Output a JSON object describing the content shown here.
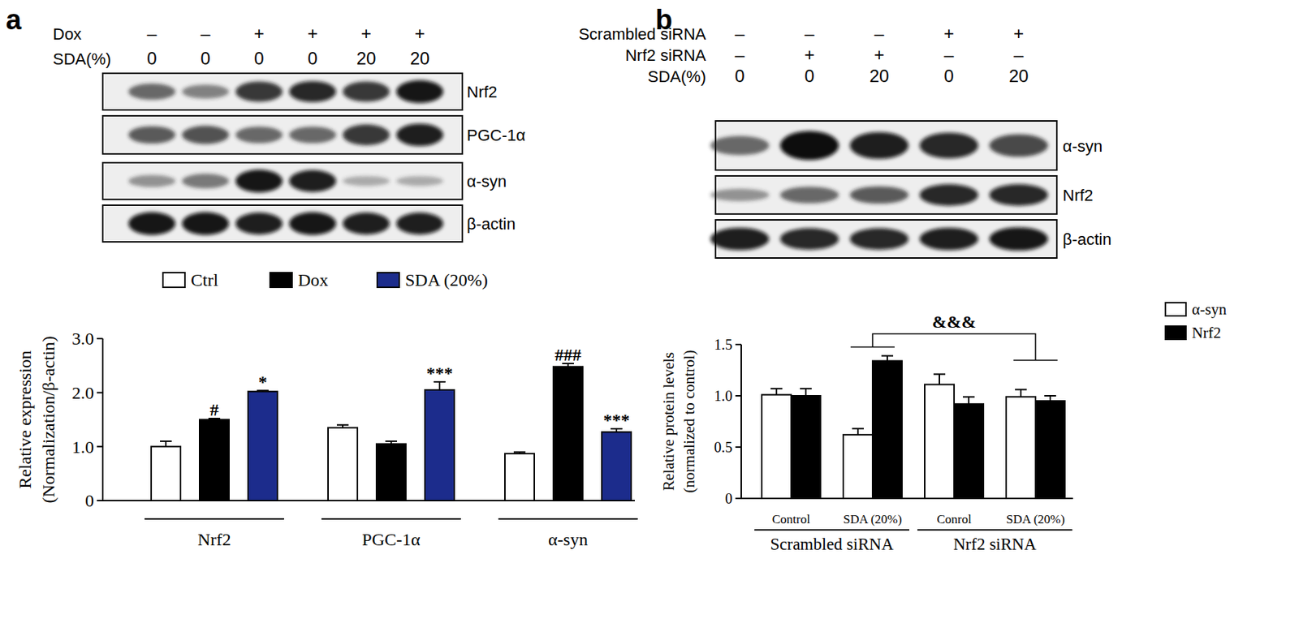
{
  "panel_labels": [
    "a",
    "b"
  ],
  "blots": [
    {
      "conditions": [
        {
          "label": "Dox",
          "values": [
            "–",
            "–",
            "+",
            "+",
            "+",
            "+"
          ]
        },
        {
          "label": "SDA(%)",
          "values": [
            "0",
            "0",
            "0",
            "0",
            "20",
            "20"
          ]
        }
      ],
      "rows": [
        {
          "label": "Nrf2",
          "bands": [
            0.55,
            0.4,
            0.8,
            0.85,
            0.8,
            0.95
          ]
        },
        {
          "label": "PGC-1α",
          "bands": [
            0.6,
            0.65,
            0.55,
            0.55,
            0.8,
            0.9
          ]
        },
        {
          "label": "α-syn",
          "bands": [
            0.3,
            0.45,
            0.95,
            0.9,
            0.15,
            0.15
          ]
        },
        {
          "label": "β-actin",
          "bands": [
            0.95,
            0.95,
            0.9,
            0.95,
            0.9,
            0.9
          ]
        }
      ]
    },
    {
      "conditions": [
        {
          "label": "Scrambled siRNA",
          "values": [
            "–",
            "–",
            "–",
            "+",
            "+"
          ]
        },
        {
          "label": "Nrf2 siRNA",
          "values": [
            "–",
            "+",
            "+",
            "–",
            "–"
          ]
        },
        {
          "label": "SDA(%)",
          "values": [
            "0",
            "0",
            "20",
            "0",
            "20"
          ]
        }
      ],
      "rows": [
        {
          "label": "α-syn",
          "bands": [
            0.55,
            1.0,
            0.9,
            0.85,
            0.7
          ]
        },
        {
          "label": "Nrf2",
          "bands": [
            0.3,
            0.55,
            0.6,
            0.85,
            0.85
          ]
        },
        {
          "label": "β-actin",
          "bands": [
            0.9,
            0.85,
            0.85,
            0.9,
            0.95
          ]
        }
      ]
    }
  ],
  "chart_data": [
    {
      "type": "bar",
      "categories": [
        "Nrf2",
        "PGC-1α",
        "α-syn"
      ],
      "series": [
        {
          "name": "Ctrl",
          "color": "#ffffff",
          "values": [
            1.0,
            1.35,
            0.87
          ],
          "errors": [
            0.1,
            0.05,
            0.03
          ]
        },
        {
          "name": "Dox",
          "color": "#000000",
          "values": [
            1.5,
            1.05,
            2.48
          ],
          "errors": [
            0.02,
            0.05,
            0.06
          ],
          "significance": [
            "#",
            null,
            "###"
          ]
        },
        {
          "name": "SDA (20%)",
          "color": "#1c2c8c",
          "values": [
            2.02,
            2.05,
            1.27
          ],
          "errors": [
            0.02,
            0.15,
            0.06
          ],
          "significance": [
            "*",
            "***",
            "***"
          ]
        }
      ],
      "ylim": [
        0,
        3
      ],
      "yticks": [
        0,
        {
          "value": 1,
          "label": "1.0"
        },
        {
          "value": 2,
          "label": "2.0"
        },
        {
          "value": 3,
          "label": "3.0"
        }
      ],
      "y_label": [
        "Relative expression",
        "(Normalization/β-actin)"
      ],
      "legend": "top"
    },
    {
      "type": "bar",
      "categories": [
        "Control",
        "SDA (20%)",
        "Conrol",
        "SDA (20%)"
      ],
      "category_groups": [
        "Scrambled siRNA",
        "Scrambled siRNA",
        "Nrf2 siRNA",
        "Nrf2 siRNA"
      ],
      "series": [
        {
          "name": "α-syn",
          "color": "#ffffff",
          "values": [
            1.01,
            0.62,
            1.11,
            0.99
          ],
          "errors": [
            0.06,
            0.06,
            0.1,
            0.07
          ]
        },
        {
          "name": "Nrf2",
          "color": "#000000",
          "values": [
            1.0,
            1.34,
            0.92,
            0.95
          ],
          "errors": [
            0.07,
            0.05,
            0.07,
            0.05
          ]
        }
      ],
      "ylim": [
        0,
        1.5
      ],
      "yticks": [
        0,
        0.5,
        {
          "value": 1,
          "label": "1.0"
        },
        1.5
      ],
      "y_label": [
        "Relative protein levels",
        "(normalized to control)"
      ],
      "annotations": [
        {
          "text": "&&&",
          "between": [
            1,
            3
          ]
        }
      ],
      "legend": "top-right"
    }
  ]
}
